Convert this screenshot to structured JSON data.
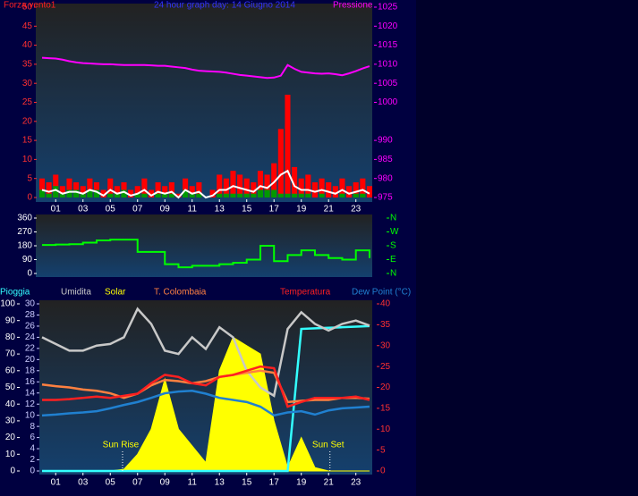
{
  "chart_data": [
    {
      "type": "line",
      "title": "24 hour graph day: 14 Giugno 2014",
      "ylabel": "Forza vento1",
      "y2label": "Pressione",
      "x": [
        0,
        0.5,
        1,
        1.5,
        2,
        2.5,
        3,
        3.5,
        4,
        4.5,
        5,
        5.5,
        6,
        6.5,
        7,
        7.5,
        8,
        8.5,
        9,
        9.5,
        10,
        10.5,
        11,
        11.5,
        12,
        12.5,
        13,
        13.5,
        14,
        14.5,
        15,
        15.5,
        16,
        16.5,
        17,
        17.5,
        18,
        18.5,
        19,
        19.5,
        20,
        20.5,
        21,
        21.5,
        22,
        22.5,
        23,
        23.5,
        24
      ],
      "xlim": [
        0,
        24.2
      ],
      "xticks": [
        {
          "value": 1,
          "label": "01"
        },
        {
          "value": 3,
          "label": "03"
        },
        {
          "value": 5,
          "label": "05"
        },
        {
          "value": 7,
          "label": "07"
        },
        {
          "value": 9,
          "label": "09"
        },
        {
          "value": 11,
          "label": "11"
        },
        {
          "value": 13,
          "label": "13"
        },
        {
          "value": 15,
          "label": "15"
        },
        {
          "value": 17,
          "label": "17"
        },
        {
          "value": 19,
          "label": "19"
        },
        {
          "value": 21,
          "label": "21"
        },
        {
          "value": 23,
          "label": "23"
        }
      ],
      "ylim": [
        0,
        50
      ],
      "yticks": [
        0,
        5,
        10,
        15,
        20,
        25,
        30,
        35,
        40,
        45,
        50
      ],
      "y2lim": [
        975,
        1025
      ],
      "y2ticks": [
        975,
        980,
        985,
        990,
        1000,
        1005,
        1010,
        1015,
        1020,
        1025
      ],
      "series": [
        {
          "color": "#ff0000",
          "style": "bar",
          "values": [
            5,
            4,
            6,
            3,
            5,
            4,
            3,
            5,
            4,
            2,
            5,
            3,
            4,
            2,
            3,
            5,
            2,
            4,
            3,
            4,
            1,
            5,
            3,
            4,
            0,
            2,
            6,
            5,
            7,
            6,
            5,
            4,
            7,
            6,
            9,
            18,
            27,
            8,
            5,
            6,
            4,
            5,
            4,
            3,
            5,
            3,
            4,
            5,
            3
          ]
        },
        {
          "color": "#009900",
          "style": "bar",
          "values": [
            2,
            1,
            3,
            1,
            2,
            2,
            1,
            2,
            2,
            0,
            1,
            1,
            2,
            0,
            1,
            1,
            0,
            1,
            1,
            1,
            0,
            2,
            1,
            1,
            0,
            0,
            1,
            1,
            1,
            1,
            1,
            1,
            2,
            2,
            2,
            1,
            1,
            1,
            1,
            1,
            0,
            1,
            0,
            0,
            1,
            0,
            1,
            1,
            0
          ]
        },
        {
          "color": "#ffffff",
          "style": "line",
          "values": [
            2,
            1.5,
            2,
            1,
            1.5,
            1.5,
            1,
            2,
            1.5,
            0.5,
            2,
            1,
            1.5,
            0.5,
            1,
            2,
            0.5,
            1.5,
            1,
            1.5,
            0,
            2,
            1,
            1.5,
            0,
            0.5,
            2,
            2,
            3,
            2.5,
            2,
            1.5,
            3,
            2.5,
            4,
            6,
            7,
            3,
            2,
            2,
            1.5,
            2,
            1.5,
            1,
            2,
            1,
            1.5,
            2,
            1
          ]
        },
        {
          "color": "#ff00ff",
          "style": "line",
          "axis": "y2",
          "values": [
            1011.7,
            1011.6,
            1011.5,
            1011.2,
            1010.8,
            1010.5,
            1010.3,
            1010.2,
            1010.1,
            1010,
            1010,
            1009.9,
            1009.8,
            1009.8,
            1009.8,
            1009.8,
            1009.7,
            1009.6,
            1009.6,
            1009.4,
            1009.2,
            1009,
            1008.6,
            1008.3,
            1008.2,
            1008.1,
            1008,
            1007.8,
            1007.5,
            1007.2,
            1007,
            1006.8,
            1006.6,
            1006.4,
            1006.5,
            1007,
            1009.8,
            1008.8,
            1008,
            1007.8,
            1007.6,
            1007.5,
            1007.6,
            1007.4,
            1007.1,
            1007.6,
            1008.2,
            1008.9,
            1009.5
          ]
        }
      ]
    },
    {
      "type": "line",
      "x": [
        0,
        1,
        2,
        3,
        4,
        5,
        6,
        7,
        8,
        9,
        10,
        11,
        12,
        13,
        14,
        15,
        16,
        17,
        18,
        19,
        20,
        21,
        22,
        23,
        24
      ],
      "xlim": [
        0,
        24.2
      ],
      "ylim": [
        0,
        360
      ],
      "yticks": [
        0,
        90,
        180,
        270,
        360
      ],
      "y2lim": [
        0,
        360
      ],
      "y2ticks": [
        {
          "value": 360,
          "label": "N"
        },
        {
          "value": 270,
          "label": "W"
        },
        {
          "value": 180,
          "label": "S"
        },
        {
          "value": 90,
          "label": "E"
        },
        {
          "value": 0,
          "label": "N"
        }
      ],
      "series": [
        {
          "color": "#00ff00",
          "style": "step",
          "values": [
            185,
            188,
            190,
            200,
            215,
            220,
            220,
            140,
            140,
            60,
            40,
            50,
            50,
            60,
            70,
            90,
            180,
            80,
            120,
            150,
            120,
            100,
            90,
            150,
            100
          ]
        }
      ]
    },
    {
      "type": "line",
      "x": [
        0,
        1,
        2,
        3,
        4,
        5,
        6,
        7,
        8,
        9,
        10,
        11,
        12,
        13,
        14,
        15,
        16,
        17,
        18,
        19,
        20,
        21,
        22,
        23,
        24
      ],
      "xlim": [
        0,
        24.2
      ],
      "xticks": [
        {
          "value": 1,
          "label": "01"
        },
        {
          "value": 3,
          "label": "03"
        },
        {
          "value": 5,
          "label": "05"
        },
        {
          "value": 7,
          "label": "07"
        },
        {
          "value": 9,
          "label": "09"
        },
        {
          "value": 11,
          "label": "11"
        },
        {
          "value": 13,
          "label": "13"
        },
        {
          "value": 15,
          "label": "15"
        },
        {
          "value": 17,
          "label": "17"
        },
        {
          "value": 19,
          "label": "19"
        },
        {
          "value": 21,
          "label": "21"
        },
        {
          "value": 23,
          "label": "23"
        }
      ],
      "ylim": [
        0,
        100
      ],
      "yticks": [
        0,
        10,
        20,
        30,
        40,
        50,
        60,
        70,
        80,
        90,
        100
      ],
      "y3lim": [
        0,
        30
      ],
      "y3ticks": [
        0,
        2,
        4,
        6,
        8,
        10,
        12,
        14,
        16,
        18,
        20,
        22,
        24,
        26,
        28,
        30
      ],
      "y2lim": [
        0,
        40
      ],
      "y2ticks": [
        0,
        5,
        10,
        15,
        20,
        25,
        30,
        35,
        40
      ],
      "series": [
        {
          "name": "Pioggia",
          "color": "#33ffff",
          "style": "line",
          "axis": "y3",
          "values": [
            0,
            0,
            0,
            0,
            0,
            0,
            0,
            0,
            0,
            0,
            0,
            0,
            0,
            0,
            0,
            0,
            0,
            0,
            0,
            25.5,
            25.6,
            25.7,
            25.8,
            25.9,
            26
          ]
        },
        {
          "name": "Umidita",
          "color": "#c8c8c8",
          "style": "line",
          "values": [
            80,
            76,
            72,
            72,
            75,
            76,
            80,
            97,
            88,
            72,
            70,
            80,
            73,
            86,
            80,
            60,
            50,
            45,
            85,
            95,
            88,
            84,
            88,
            90,
            87
          ]
        },
        {
          "name": "Solar",
          "color": "#ffff00",
          "style": "area",
          "values": [
            0,
            0,
            0,
            0,
            0,
            0,
            1,
            10,
            25,
            55,
            25,
            15,
            5,
            60,
            80,
            75,
            70,
            30,
            2,
            20,
            2,
            0,
            0,
            0,
            0
          ]
        },
        {
          "name": "T. Colombaia",
          "color": "#ff8040",
          "style": "line",
          "axis": "y2",
          "values": [
            20.7,
            20.3,
            20,
            19.5,
            19.2,
            18.6,
            17.5,
            18.5,
            20.5,
            21.8,
            21.5,
            21,
            21.5,
            22.5,
            23,
            23.5,
            24,
            23.5,
            16.5,
            16.8,
            17,
            17,
            17.5,
            17.5,
            17.3
          ]
        },
        {
          "name": "Temperatura",
          "color": "#ff2020",
          "style": "line",
          "axis": "y2",
          "values": [
            17,
            17,
            17.2,
            17.5,
            17.8,
            17.5,
            18,
            18.5,
            21,
            23,
            22.5,
            21,
            20.5,
            22.5,
            23,
            24,
            25,
            24.6,
            15.4,
            16.5,
            17.5,
            17.5,
            17.5,
            17.8,
            17
          ]
        },
        {
          "name": "Dew Point (°C)",
          "color": "#2080d0",
          "style": "line",
          "axis": "y2",
          "values": [
            13.3,
            13.5,
            13.8,
            14,
            14.3,
            15,
            15.8,
            16.5,
            17.5,
            18.6,
            19,
            19.2,
            18.5,
            17.5,
            17,
            16.5,
            15.4,
            13.3,
            14,
            14.3,
            13.5,
            14.5,
            15,
            15.2,
            15.4
          ]
        }
      ],
      "annotations": [
        {
          "text": "Sun Rise",
          "x": 5.9
        },
        {
          "text": "Sun Set",
          "x": 21.1
        }
      ]
    }
  ]
}
